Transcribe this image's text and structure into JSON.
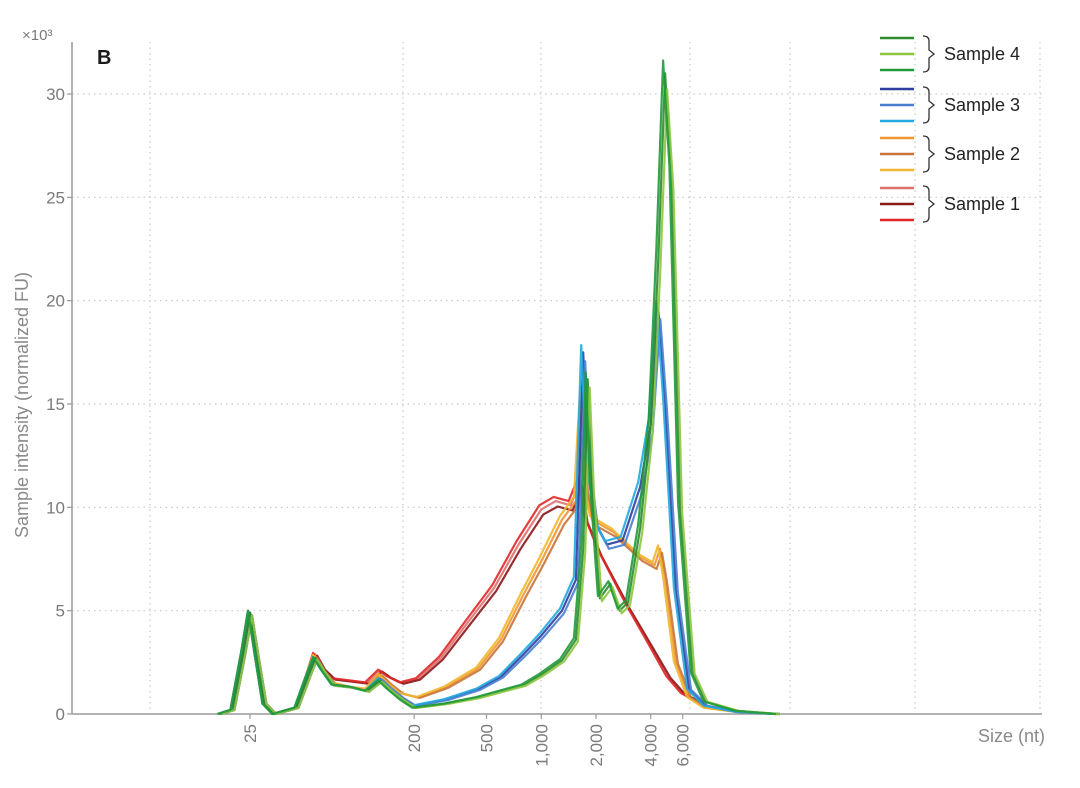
{
  "chart_data": {
    "type": "line",
    "panel_label": "B",
    "ylabel": "Sample intensity (normalized FU)",
    "y_multiplier": "×10³",
    "xlabel": "Size (nt)",
    "x_scale": "log",
    "ylim": [
      0,
      32
    ],
    "y_ticks": [
      0,
      5,
      10,
      15,
      20,
      25,
      30
    ],
    "x_tick_labels": [
      "25",
      "200",
      "500",
      "1,000",
      "2,000",
      "4,000",
      "6,000"
    ],
    "x_tick_values": [
      25,
      200,
      500,
      1000,
      2000,
      4000,
      6000
    ],
    "grid": "dotted",
    "legend_position": "top-right",
    "legend": [
      {
        "label": "Sample 4",
        "colors": [
          "#2e8b2e",
          "#8cc63f",
          "#1f9a3a"
        ]
      },
      {
        "label": "Sample 3",
        "colors": [
          "#2d3e9e",
          "#4a7fd0",
          "#22a9e0"
        ]
      },
      {
        "label": "Sample 2",
        "colors": [
          "#f0962e",
          "#c8743a",
          "#f2b630"
        ]
      },
      {
        "label": "Sample 1",
        "colors": [
          "#e07070",
          "#8b1a1a",
          "#e02828"
        ]
      }
    ],
    "series": [
      {
        "name": "Sample 1",
        "colors": [
          "#e07070",
          "#8b1a1a",
          "#e02828"
        ],
        "points": [
          [
            17,
            0
          ],
          [
            20,
            0.2
          ],
          [
            23,
            3
          ],
          [
            25,
            4.9
          ],
          [
            27,
            3
          ],
          [
            30,
            0.5
          ],
          [
            34,
            0
          ],
          [
            45,
            0.3
          ],
          [
            52,
            1.8
          ],
          [
            57,
            2.9
          ],
          [
            63,
            2.2
          ],
          [
            72,
            1.7
          ],
          [
            90,
            1.6
          ],
          [
            110,
            1.5
          ],
          [
            130,
            2.1
          ],
          [
            145,
            1.8
          ],
          [
            170,
            1.5
          ],
          [
            210,
            1.7
          ],
          [
            280,
            2.7
          ],
          [
            400,
            4.5
          ],
          [
            550,
            6.1
          ],
          [
            750,
            8.2
          ],
          [
            1000,
            9.9
          ],
          [
            1200,
            10.3
          ],
          [
            1450,
            10.1
          ],
          [
            1650,
            11.3
          ],
          [
            1750,
            9.5
          ],
          [
            2100,
            7.8
          ],
          [
            3000,
            5.2
          ],
          [
            4000,
            3.3
          ],
          [
            5000,
            1.8
          ],
          [
            6000,
            1
          ],
          [
            8000,
            0.4
          ],
          [
            12000,
            0.1
          ],
          [
            20000,
            0
          ]
        ]
      },
      {
        "name": "Sample 2",
        "colors": [
          "#f0962e",
          "#c8743a",
          "#f2b630"
        ],
        "points": [
          [
            17,
            0
          ],
          [
            20,
            0.2
          ],
          [
            23,
            3
          ],
          [
            25,
            4.9
          ],
          [
            27,
            3
          ],
          [
            30,
            0.5
          ],
          [
            34,
            0
          ],
          [
            45,
            0.3
          ],
          [
            52,
            1.8
          ],
          [
            57,
            2.8
          ],
          [
            63,
            2.1
          ],
          [
            72,
            1.5
          ],
          [
            90,
            1.3
          ],
          [
            110,
            1.2
          ],
          [
            130,
            1.9
          ],
          [
            145,
            1.5
          ],
          [
            170,
            1
          ],
          [
            210,
            0.8
          ],
          [
            300,
            1.3
          ],
          [
            450,
            2.2
          ],
          [
            600,
            3.6
          ],
          [
            800,
            5.8
          ],
          [
            1000,
            7.4
          ],
          [
            1300,
            9.4
          ],
          [
            1550,
            10.3
          ],
          [
            1680,
            15.5
          ],
          [
            1760,
            11
          ],
          [
            1900,
            9.4
          ],
          [
            2500,
            8.8
          ],
          [
            3500,
            7.6
          ],
          [
            4200,
            7.2
          ],
          [
            4500,
            8
          ],
          [
            4800,
            6.5
          ],
          [
            5500,
            2.5
          ],
          [
            6500,
            0.8
          ],
          [
            8000,
            0.3
          ],
          [
            12000,
            0.1
          ],
          [
            20000,
            0
          ]
        ]
      },
      {
        "name": "Sample 3",
        "colors": [
          "#2d3e9e",
          "#4a7fd0",
          "#22a9e0"
        ],
        "points": [
          [
            17,
            0
          ],
          [
            20,
            0.2
          ],
          [
            23,
            3
          ],
          [
            25,
            4.9
          ],
          [
            27,
            3
          ],
          [
            30,
            0.5
          ],
          [
            34,
            0
          ],
          [
            45,
            0.3
          ],
          [
            52,
            1.8
          ],
          [
            57,
            2.7
          ],
          [
            63,
            2.1
          ],
          [
            72,
            1.4
          ],
          [
            90,
            1.3
          ],
          [
            110,
            1.1
          ],
          [
            130,
            1.7
          ],
          [
            145,
            1.3
          ],
          [
            170,
            0.8
          ],
          [
            200,
            0.4
          ],
          [
            300,
            0.7
          ],
          [
            450,
            1.2
          ],
          [
            600,
            1.8
          ],
          [
            800,
            2.9
          ],
          [
            1000,
            3.8
          ],
          [
            1300,
            5
          ],
          [
            1550,
            6.5
          ],
          [
            1700,
            17.5
          ],
          [
            1800,
            12.5
          ],
          [
            2000,
            9.2
          ],
          [
            2300,
            8.2
          ],
          [
            2800,
            8.4
          ],
          [
            3500,
            11
          ],
          [
            4000,
            14
          ],
          [
            4400,
            19.6
          ],
          [
            4800,
            15
          ],
          [
            5500,
            6
          ],
          [
            6500,
            1.2
          ],
          [
            8000,
            0.4
          ],
          [
            12000,
            0.1
          ],
          [
            20000,
            0
          ]
        ]
      },
      {
        "name": "Sample 4",
        "colors": [
          "#2e8b2e",
          "#8cc63f",
          "#1f9a3a"
        ],
        "points": [
          [
            17,
            0
          ],
          [
            20,
            0.2
          ],
          [
            23,
            3
          ],
          [
            25,
            4.9
          ],
          [
            27,
            3
          ],
          [
            30,
            0.5
          ],
          [
            34,
            0
          ],
          [
            45,
            0.3
          ],
          [
            52,
            1.8
          ],
          [
            57,
            2.7
          ],
          [
            63,
            2.1
          ],
          [
            72,
            1.4
          ],
          [
            90,
            1.3
          ],
          [
            110,
            1.1
          ],
          [
            130,
            1.6
          ],
          [
            145,
            1.2
          ],
          [
            170,
            0.7
          ],
          [
            200,
            0.3
          ],
          [
            300,
            0.5
          ],
          [
            450,
            0.8
          ],
          [
            600,
            1.1
          ],
          [
            800,
            1.4
          ],
          [
            1000,
            1.9
          ],
          [
            1300,
            2.6
          ],
          [
            1550,
            3.6
          ],
          [
            1700,
            8
          ],
          [
            1800,
            16.2
          ],
          [
            1900,
            11
          ],
          [
            2100,
            5.6
          ],
          [
            2400,
            6.3
          ],
          [
            2700,
            5
          ],
          [
            3000,
            5.4
          ],
          [
            3500,
            9
          ],
          [
            4000,
            14
          ],
          [
            4400,
            22
          ],
          [
            4800,
            31
          ],
          [
            5200,
            26
          ],
          [
            5800,
            10
          ],
          [
            6800,
            2
          ],
          [
            8000,
            0.6
          ],
          [
            12000,
            0.15
          ],
          [
            20000,
            0
          ]
        ]
      }
    ]
  }
}
